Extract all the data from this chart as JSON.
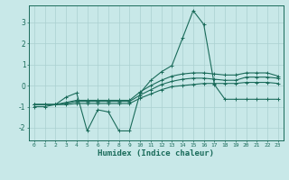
{
  "xlabel": "Humidex (Indice chaleur)",
  "bg_color": "#c8e8e8",
  "line_color": "#1a6b5a",
  "grid_color": "#aad0d0",
  "xlim": [
    -0.5,
    23.5
  ],
  "ylim": [
    -2.6,
    3.8
  ],
  "yticks": [
    -2,
    -1,
    0,
    1,
    2,
    3
  ],
  "xticks": [
    0,
    1,
    2,
    3,
    4,
    5,
    6,
    7,
    8,
    9,
    10,
    11,
    12,
    13,
    14,
    15,
    16,
    17,
    18,
    19,
    20,
    21,
    22,
    23
  ],
  "line1_x": [
    0,
    1,
    2,
    3,
    4,
    5,
    6,
    7,
    8,
    9,
    10,
    11,
    12,
    13,
    14,
    15,
    16,
    17,
    18,
    19,
    20,
    21,
    22,
    23
  ],
  "line1_y": [
    -1.0,
    -1.0,
    -0.9,
    -0.55,
    -0.35,
    -2.15,
    -1.15,
    -1.25,
    -2.15,
    -2.15,
    -0.35,
    0.25,
    0.65,
    0.95,
    2.25,
    3.55,
    2.9,
    0.05,
    -0.65,
    -0.65,
    -0.65,
    -0.65,
    -0.65,
    -0.65
  ],
  "line2_x": [
    0,
    1,
    2,
    3,
    4,
    5,
    6,
    7,
    8,
    9,
    10,
    11,
    12,
    13,
    14,
    15,
    16,
    17,
    18,
    19,
    20,
    21,
    22,
    23
  ],
  "line2_y": [
    -0.9,
    -0.9,
    -0.9,
    -0.9,
    -0.85,
    -0.85,
    -0.85,
    -0.85,
    -0.85,
    -0.85,
    -0.6,
    -0.4,
    -0.2,
    -0.05,
    0.0,
    0.05,
    0.1,
    0.1,
    0.1,
    0.1,
    0.15,
    0.15,
    0.15,
    0.1
  ],
  "line3_x": [
    0,
    1,
    2,
    3,
    4,
    5,
    6,
    7,
    8,
    9,
    10,
    11,
    12,
    13,
    14,
    15,
    16,
    17,
    18,
    19,
    20,
    21,
    22,
    23
  ],
  "line3_y": [
    -0.9,
    -0.9,
    -0.9,
    -0.85,
    -0.75,
    -0.75,
    -0.75,
    -0.75,
    -0.75,
    -0.75,
    -0.45,
    -0.2,
    0.05,
    0.2,
    0.3,
    0.35,
    0.35,
    0.3,
    0.25,
    0.25,
    0.4,
    0.4,
    0.4,
    0.35
  ],
  "line4_x": [
    0,
    1,
    2,
    3,
    4,
    5,
    6,
    7,
    8,
    9,
    10,
    11,
    12,
    13,
    14,
    15,
    16,
    17,
    18,
    19,
    20,
    21,
    22,
    23
  ],
  "line4_y": [
    -0.9,
    -0.9,
    -0.9,
    -0.8,
    -0.7,
    -0.7,
    -0.7,
    -0.7,
    -0.7,
    -0.7,
    -0.3,
    0.0,
    0.25,
    0.45,
    0.55,
    0.6,
    0.6,
    0.55,
    0.5,
    0.5,
    0.6,
    0.6,
    0.6,
    0.45
  ]
}
